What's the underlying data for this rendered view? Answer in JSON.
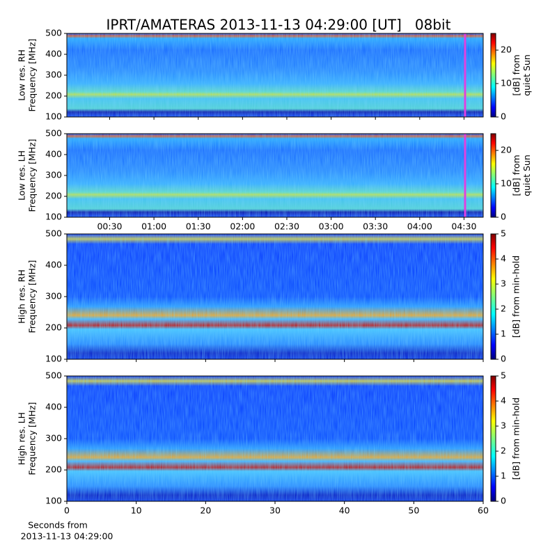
{
  "chart_data": [
    {
      "type": "heatmap",
      "title": "IPRT/AMATERAS 2013-11-13 04:29:00 [UT]   08bit",
      "ylabel": [
        "Low res. RH",
        "Frequency [MHz]"
      ],
      "ylim": [
        100,
        500
      ],
      "yticks": [
        100,
        200,
        300,
        400,
        500
      ],
      "xlim": [
        1,
        283
      ],
      "colormap": "jet",
      "clim": [
        0,
        25
      ],
      "cticks": [
        0,
        10,
        20
      ],
      "colorbar_label": [
        "[dB] from",
        "quiet Sun"
      ]
    },
    {
      "type": "heatmap",
      "ylabel": [
        "Low res. LH",
        "Frequency [MHz]"
      ],
      "ylim": [
        100,
        500
      ],
      "yticks": [
        100,
        200,
        300,
        400,
        500
      ],
      "xlim": [
        1,
        283
      ],
      "xticks": [
        {
          "value": 30,
          "label": "00:30"
        },
        {
          "value": 60,
          "label": "01:00"
        },
        {
          "value": 90,
          "label": "01:30"
        },
        {
          "value": 120,
          "label": "02:00"
        },
        {
          "value": 150,
          "label": "02:30"
        },
        {
          "value": 180,
          "label": "03:00"
        },
        {
          "value": 210,
          "label": "03:30"
        },
        {
          "value": 240,
          "label": "04:00"
        },
        {
          "value": 270,
          "label": "04:30"
        }
      ],
      "colormap": "jet",
      "clim": [
        0,
        25
      ],
      "cticks": [
        0,
        10,
        20
      ],
      "colorbar_label": [
        "[dB] from",
        "quiet Sun"
      ]
    },
    {
      "type": "heatmap",
      "ylabel": [
        "High res. RH",
        "Frequency [MHz]"
      ],
      "ylim": [
        100,
        500
      ],
      "yticks": [
        100,
        200,
        300,
        400,
        500
      ],
      "xlim": [
        0,
        60
      ],
      "colormap": "jet",
      "clim": [
        0,
        5
      ],
      "cticks": [
        0,
        1,
        2,
        3,
        4,
        5
      ],
      "colorbar_label": [
        "[dB] from min-hold"
      ]
    },
    {
      "type": "heatmap",
      "ylabel": [
        "High res. LH",
        "Frequency [MHz]"
      ],
      "ylim": [
        100,
        500
      ],
      "yticks": [
        100,
        200,
        300,
        400,
        500
      ],
      "xlim": [
        0,
        60
      ],
      "xticks": [
        0,
        10,
        20,
        30,
        40,
        50,
        60
      ],
      "xlabel": [
        "Seconds from",
        "2013-11-13 04:29:00"
      ],
      "colormap": "jet",
      "clim": [
        0,
        5
      ],
      "cticks": [
        0,
        1,
        2,
        3,
        4,
        5
      ],
      "colorbar_label": [
        "[dB] from min-hold"
      ]
    }
  ]
}
